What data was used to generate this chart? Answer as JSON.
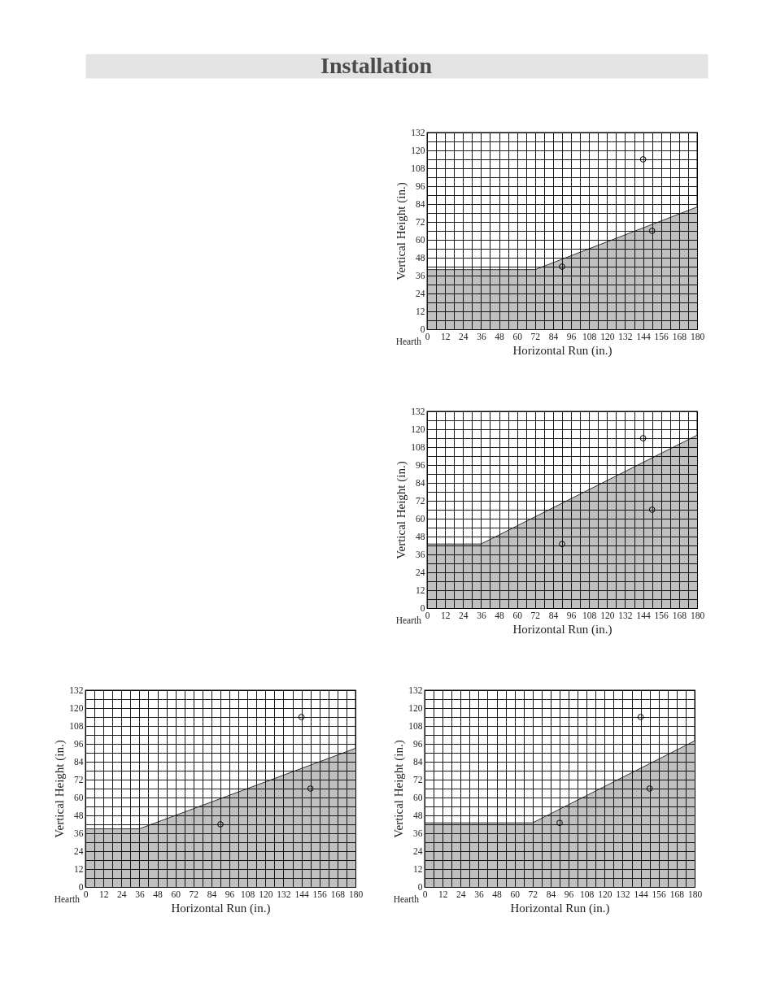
{
  "chart_data": [
    {
      "type": "area",
      "title": "Installation",
      "xlabel": "Horizontal Run (in.)",
      "ylabel": "Vertical Height (in.)",
      "xlim": [
        0,
        180
      ],
      "ylim": [
        0,
        132
      ],
      "grid": true,
      "xticks": [
        0,
        {
          "value": 6,
          "label": null
        },
        12,
        {
          "value": 18,
          "label": null
        },
        24,
        {
          "value": 30,
          "label": null
        },
        36,
        {
          "value": 42,
          "label": null
        },
        48,
        {
          "value": 54,
          "label": null
        },
        60,
        {
          "value": 66,
          "label": null
        },
        72,
        {
          "value": 78,
          "label": null
        },
        84,
        {
          "value": 90,
          "label": null
        },
        96,
        {
          "value": 102,
          "label": null
        },
        108,
        {
          "value": 114,
          "label": null
        },
        120,
        {
          "value": 126,
          "label": null
        },
        132,
        {
          "value": 138,
          "label": null
        },
        144,
        {
          "value": 150,
          "label": null
        },
        156,
        {
          "value": 162,
          "label": null
        },
        168,
        {
          "value": 174,
          "label": null
        },
        180
      ],
      "yticks": [
        0,
        {
          "value": 6,
          "label": null
        },
        12,
        {
          "value": 18,
          "label": null
        },
        24,
        {
          "value": 30,
          "label": null
        },
        36,
        {
          "value": 42,
          "label": null
        },
        48,
        {
          "value": 54,
          "label": null
        },
        60,
        {
          "value": 66,
          "label": null
        },
        72,
        {
          "value": 78,
          "label": null
        },
        84,
        {
          "value": 90,
          "label": null
        },
        96,
        {
          "value": 102,
          "label": null
        },
        108,
        {
          "value": 114,
          "label": null
        },
        120,
        {
          "value": 126,
          "label": null
        },
        132
      ],
      "series": [
        {
          "color": "#c0c0c0",
          "x": [
            0,
            72,
            180
          ],
          "values": [
            40,
            40,
            82
          ]
        },
        {
          "type": "scatter",
          "marker": "circle",
          "color": "#000000",
          "x": [
            144,
            150,
            90
          ],
          "values": [
            114,
            66,
            42
          ]
        }
      ],
      "annotations": [
        "Hearth"
      ]
    },
    {
      "type": "area",
      "xlabel": "Horizontal Run (in.)",
      "ylabel": "Vertical Height (in.)",
      "xlim": [
        0,
        180
      ],
      "ylim": [
        0,
        132
      ],
      "grid": true,
      "xticks": [
        0,
        {
          "value": 6,
          "label": null
        },
        12,
        {
          "value": 18,
          "label": null
        },
        24,
        {
          "value": 30,
          "label": null
        },
        36,
        {
          "value": 42,
          "label": null
        },
        48,
        {
          "value": 54,
          "label": null
        },
        60,
        {
          "value": 66,
          "label": null
        },
        72,
        {
          "value": 78,
          "label": null
        },
        84,
        {
          "value": 90,
          "label": null
        },
        96,
        {
          "value": 102,
          "label": null
        },
        108,
        {
          "value": 114,
          "label": null
        },
        120,
        {
          "value": 126,
          "label": null
        },
        132,
        {
          "value": 138,
          "label": null
        },
        144,
        {
          "value": 150,
          "label": null
        },
        156,
        {
          "value": 162,
          "label": null
        },
        168,
        {
          "value": 174,
          "label": null
        },
        180
      ],
      "yticks": [
        0,
        {
          "value": 6,
          "label": null
        },
        12,
        {
          "value": 18,
          "label": null
        },
        24,
        {
          "value": 30,
          "label": null
        },
        36,
        {
          "value": 42,
          "label": null
        },
        48,
        {
          "value": 54,
          "label": null
        },
        60,
        {
          "value": 66,
          "label": null
        },
        72,
        {
          "value": 78,
          "label": null
        },
        84,
        {
          "value": 90,
          "label": null
        },
        96,
        {
          "value": 102,
          "label": null
        },
        108,
        {
          "value": 114,
          "label": null
        },
        120,
        {
          "value": 126,
          "label": null
        },
        132
      ],
      "series": [
        {
          "color": "#c0c0c0",
          "x": [
            0,
            36,
            180
          ],
          "values": [
            43,
            43,
            116
          ]
        },
        {
          "type": "scatter",
          "marker": "circle",
          "color": "#000000",
          "x": [
            144,
            150,
            90
          ],
          "values": [
            114,
            66,
            43
          ]
        }
      ],
      "annotations": [
        "Hearth"
      ]
    },
    {
      "type": "area",
      "xlabel": "Horizontal Run (in.)",
      "ylabel": "Vertical Height (in.)",
      "xlim": [
        0,
        180
      ],
      "ylim": [
        0,
        132
      ],
      "grid": true,
      "xticks": [
        0,
        {
          "value": 6,
          "label": null
        },
        12,
        {
          "value": 18,
          "label": null
        },
        24,
        {
          "value": 30,
          "label": null
        },
        36,
        {
          "value": 42,
          "label": null
        },
        48,
        {
          "value": 54,
          "label": null
        },
        60,
        {
          "value": 66,
          "label": null
        },
        72,
        {
          "value": 78,
          "label": null
        },
        84,
        {
          "value": 90,
          "label": null
        },
        96,
        {
          "value": 102,
          "label": null
        },
        108,
        {
          "value": 114,
          "label": null
        },
        120,
        {
          "value": 126,
          "label": null
        },
        132,
        {
          "value": 138,
          "label": null
        },
        144,
        {
          "value": 150,
          "label": null
        },
        156,
        {
          "value": 162,
          "label": null
        },
        168,
        {
          "value": 174,
          "label": null
        },
        180
      ],
      "yticks": [
        0,
        {
          "value": 6,
          "label": null
        },
        12,
        {
          "value": 18,
          "label": null
        },
        24,
        {
          "value": 30,
          "label": null
        },
        36,
        {
          "value": 42,
          "label": null
        },
        48,
        {
          "value": 54,
          "label": null
        },
        60,
        {
          "value": 66,
          "label": null
        },
        72,
        {
          "value": 78,
          "label": null
        },
        84,
        {
          "value": 90,
          "label": null
        },
        96,
        {
          "value": 102,
          "label": null
        },
        108,
        {
          "value": 114,
          "label": null
        },
        120,
        {
          "value": 126,
          "label": null
        },
        132
      ],
      "series": [
        {
          "color": "#c0c0c0",
          "x": [
            0,
            36,
            180
          ],
          "values": [
            39,
            39,
            93
          ]
        },
        {
          "type": "scatter",
          "marker": "circle",
          "color": "#000000",
          "x": [
            144,
            150,
            90
          ],
          "values": [
            114,
            66,
            42
          ]
        }
      ],
      "annotations": [
        "Hearth"
      ]
    },
    {
      "type": "area",
      "xlabel": "Horizontal Run (in.)",
      "ylabel": "Vertical Height (in.)",
      "xlim": [
        0,
        180
      ],
      "ylim": [
        0,
        132
      ],
      "grid": true,
      "xticks": [
        0,
        {
          "value": 6,
          "label": null
        },
        12,
        {
          "value": 18,
          "label": null
        },
        24,
        {
          "value": 30,
          "label": null
        },
        36,
        {
          "value": 42,
          "label": null
        },
        48,
        {
          "value": 54,
          "label": null
        },
        60,
        {
          "value": 66,
          "label": null
        },
        72,
        {
          "value": 78,
          "label": null
        },
        84,
        {
          "value": 90,
          "label": null
        },
        96,
        {
          "value": 102,
          "label": null
        },
        108,
        {
          "value": 114,
          "label": null
        },
        120,
        {
          "value": 126,
          "label": null
        },
        132,
        {
          "value": 138,
          "label": null
        },
        144,
        {
          "value": 150,
          "label": null
        },
        156,
        {
          "value": 162,
          "label": null
        },
        168,
        {
          "value": 174,
          "label": null
        },
        180
      ],
      "yticks": [
        0,
        {
          "value": 6,
          "label": null
        },
        12,
        {
          "value": 18,
          "label": null
        },
        24,
        {
          "value": 30,
          "label": null
        },
        36,
        {
          "value": 42,
          "label": null
        },
        48,
        {
          "value": 54,
          "label": null
        },
        60,
        {
          "value": 66,
          "label": null
        },
        72,
        {
          "value": 78,
          "label": null
        },
        84,
        {
          "value": 90,
          "label": null
        },
        96,
        {
          "value": 102,
          "label": null
        },
        108,
        {
          "value": 114,
          "label": null
        },
        120,
        {
          "value": 126,
          "label": null
        },
        132
      ],
      "series": [
        {
          "color": "#c0c0c0",
          "x": [
            0,
            72,
            180
          ],
          "values": [
            43,
            43,
            98
          ]
        },
        {
          "type": "scatter",
          "marker": "circle",
          "color": "#000000",
          "x": [
            144,
            150,
            90
          ],
          "values": [
            114,
            66,
            43
          ]
        }
      ],
      "annotations": [
        "Hearth"
      ]
    }
  ]
}
